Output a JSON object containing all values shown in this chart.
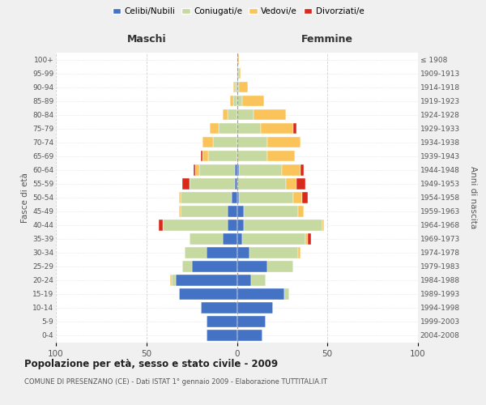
{
  "age_groups": [
    "0-4",
    "5-9",
    "10-14",
    "15-19",
    "20-24",
    "25-29",
    "30-34",
    "35-39",
    "40-44",
    "45-49",
    "50-54",
    "55-59",
    "60-64",
    "65-69",
    "70-74",
    "75-79",
    "80-84",
    "85-89",
    "90-94",
    "95-99",
    "100+"
  ],
  "birth_years": [
    "2004-2008",
    "1999-2003",
    "1994-1998",
    "1989-1993",
    "1984-1988",
    "1979-1983",
    "1974-1978",
    "1969-1973",
    "1964-1968",
    "1959-1963",
    "1954-1958",
    "1949-1953",
    "1944-1948",
    "1939-1943",
    "1934-1938",
    "1929-1933",
    "1924-1928",
    "1919-1923",
    "1914-1918",
    "1909-1913",
    "≤ 1908"
  ],
  "males": {
    "celibe": [
      17,
      17,
      20,
      32,
      34,
      25,
      17,
      8,
      5,
      5,
      3,
      1,
      1,
      0,
      0,
      0,
      0,
      0,
      0,
      0,
      0
    ],
    "coniugato": [
      0,
      0,
      0,
      0,
      2,
      5,
      12,
      18,
      36,
      26,
      28,
      25,
      20,
      16,
      13,
      10,
      5,
      2,
      1,
      0,
      0
    ],
    "vedovo": [
      0,
      0,
      0,
      0,
      1,
      0,
      0,
      0,
      0,
      1,
      1,
      0,
      2,
      3,
      6,
      5,
      3,
      2,
      1,
      0,
      0
    ],
    "divorziato": [
      0,
      0,
      0,
      0,
      0,
      0,
      0,
      0,
      2,
      0,
      0,
      4,
      1,
      1,
      0,
      0,
      0,
      0,
      0,
      0,
      0
    ]
  },
  "females": {
    "nubile": [
      14,
      16,
      20,
      26,
      8,
      17,
      7,
      3,
      4,
      4,
      1,
      0,
      1,
      0,
      0,
      0,
      0,
      0,
      0,
      0,
      0
    ],
    "coniugata": [
      0,
      0,
      0,
      3,
      8,
      14,
      27,
      35,
      43,
      30,
      30,
      27,
      24,
      17,
      17,
      13,
      9,
      3,
      1,
      1,
      0
    ],
    "vedova": [
      0,
      0,
      0,
      0,
      0,
      0,
      1,
      1,
      1,
      3,
      5,
      6,
      10,
      15,
      18,
      18,
      18,
      12,
      5,
      1,
      1
    ],
    "divorziata": [
      0,
      0,
      0,
      0,
      0,
      0,
      0,
      2,
      0,
      0,
      3,
      5,
      2,
      0,
      0,
      2,
      0,
      0,
      0,
      0,
      0
    ]
  },
  "colors": {
    "celibe": "#4472c4",
    "coniugato": "#c5d9a0",
    "vedovo": "#fac45a",
    "divorziato": "#d9291c"
  },
  "xlim": 100,
  "title": "Popolazione per età, sesso e stato civile - 2009",
  "subtitle": "COMUNE DI PRESENZANO (CE) - Dati ISTAT 1° gennaio 2009 - Elaborazione TUTTITALIA.IT",
  "ylabel_left": "Fasce di età",
  "ylabel_right": "Anni di nascita",
  "xlabel_maschi": "Maschi",
  "xlabel_femmine": "Femmine",
  "legend_labels": [
    "Celibi/Nubili",
    "Coniugati/e",
    "Vedovi/e",
    "Divorziati/e"
  ],
  "bg_color": "#f0f0f0",
  "plot_bg": "#ffffff",
  "bar_height": 0.8
}
